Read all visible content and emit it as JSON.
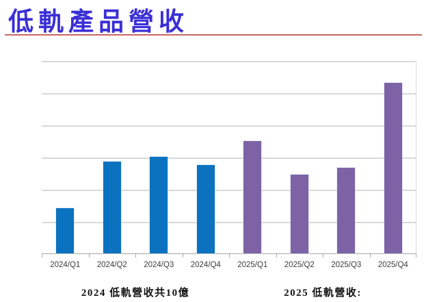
{
  "slide": {
    "title": "低軌產品營收",
    "title_color": "#3a2fd6",
    "rule_color": "#cf7a74"
  },
  "chart_data": {
    "type": "bar",
    "title": "低軌產品營收",
    "categories": [
      "2024/Q1",
      "2024/Q2",
      "2024/Q3",
      "2024/Q4",
      "2025/Q1",
      "2025/Q2",
      "2025/Q3",
      "2025/Q4"
    ],
    "series": [
      {
        "name": "2024",
        "color": "#0b72bf",
        "values": [
          1.4,
          2.85,
          3.0,
          2.75,
          null,
          null,
          null,
          null
        ]
      },
      {
        "name": "2025",
        "color": "#7d63a5",
        "values": [
          null,
          null,
          null,
          null,
          3.5,
          2.45,
          2.65,
          5.3
        ]
      }
    ],
    "values_flat": [
      1.4,
      2.85,
      3.0,
      2.75,
      3.5,
      2.45,
      2.65,
      5.3
    ],
    "bar_colors": [
      "#0b72bf",
      "#0b72bf",
      "#0b72bf",
      "#0b72bf",
      "#7d63a5",
      "#7d63a5",
      "#7d63a5",
      "#7d63a5"
    ],
    "ylim": [
      0,
      6
    ],
    "grid": true,
    "gridline_color": "#d8d8d8",
    "axis_color": "#a6a6a6",
    "x_tick_label_color": "#3d3d3d",
    "xlabel": "",
    "ylabel": "",
    "legend_position": "none"
  },
  "annotations": {
    "left": "2024 低軌營收共10億",
    "right": "2025 低軌營收:"
  }
}
